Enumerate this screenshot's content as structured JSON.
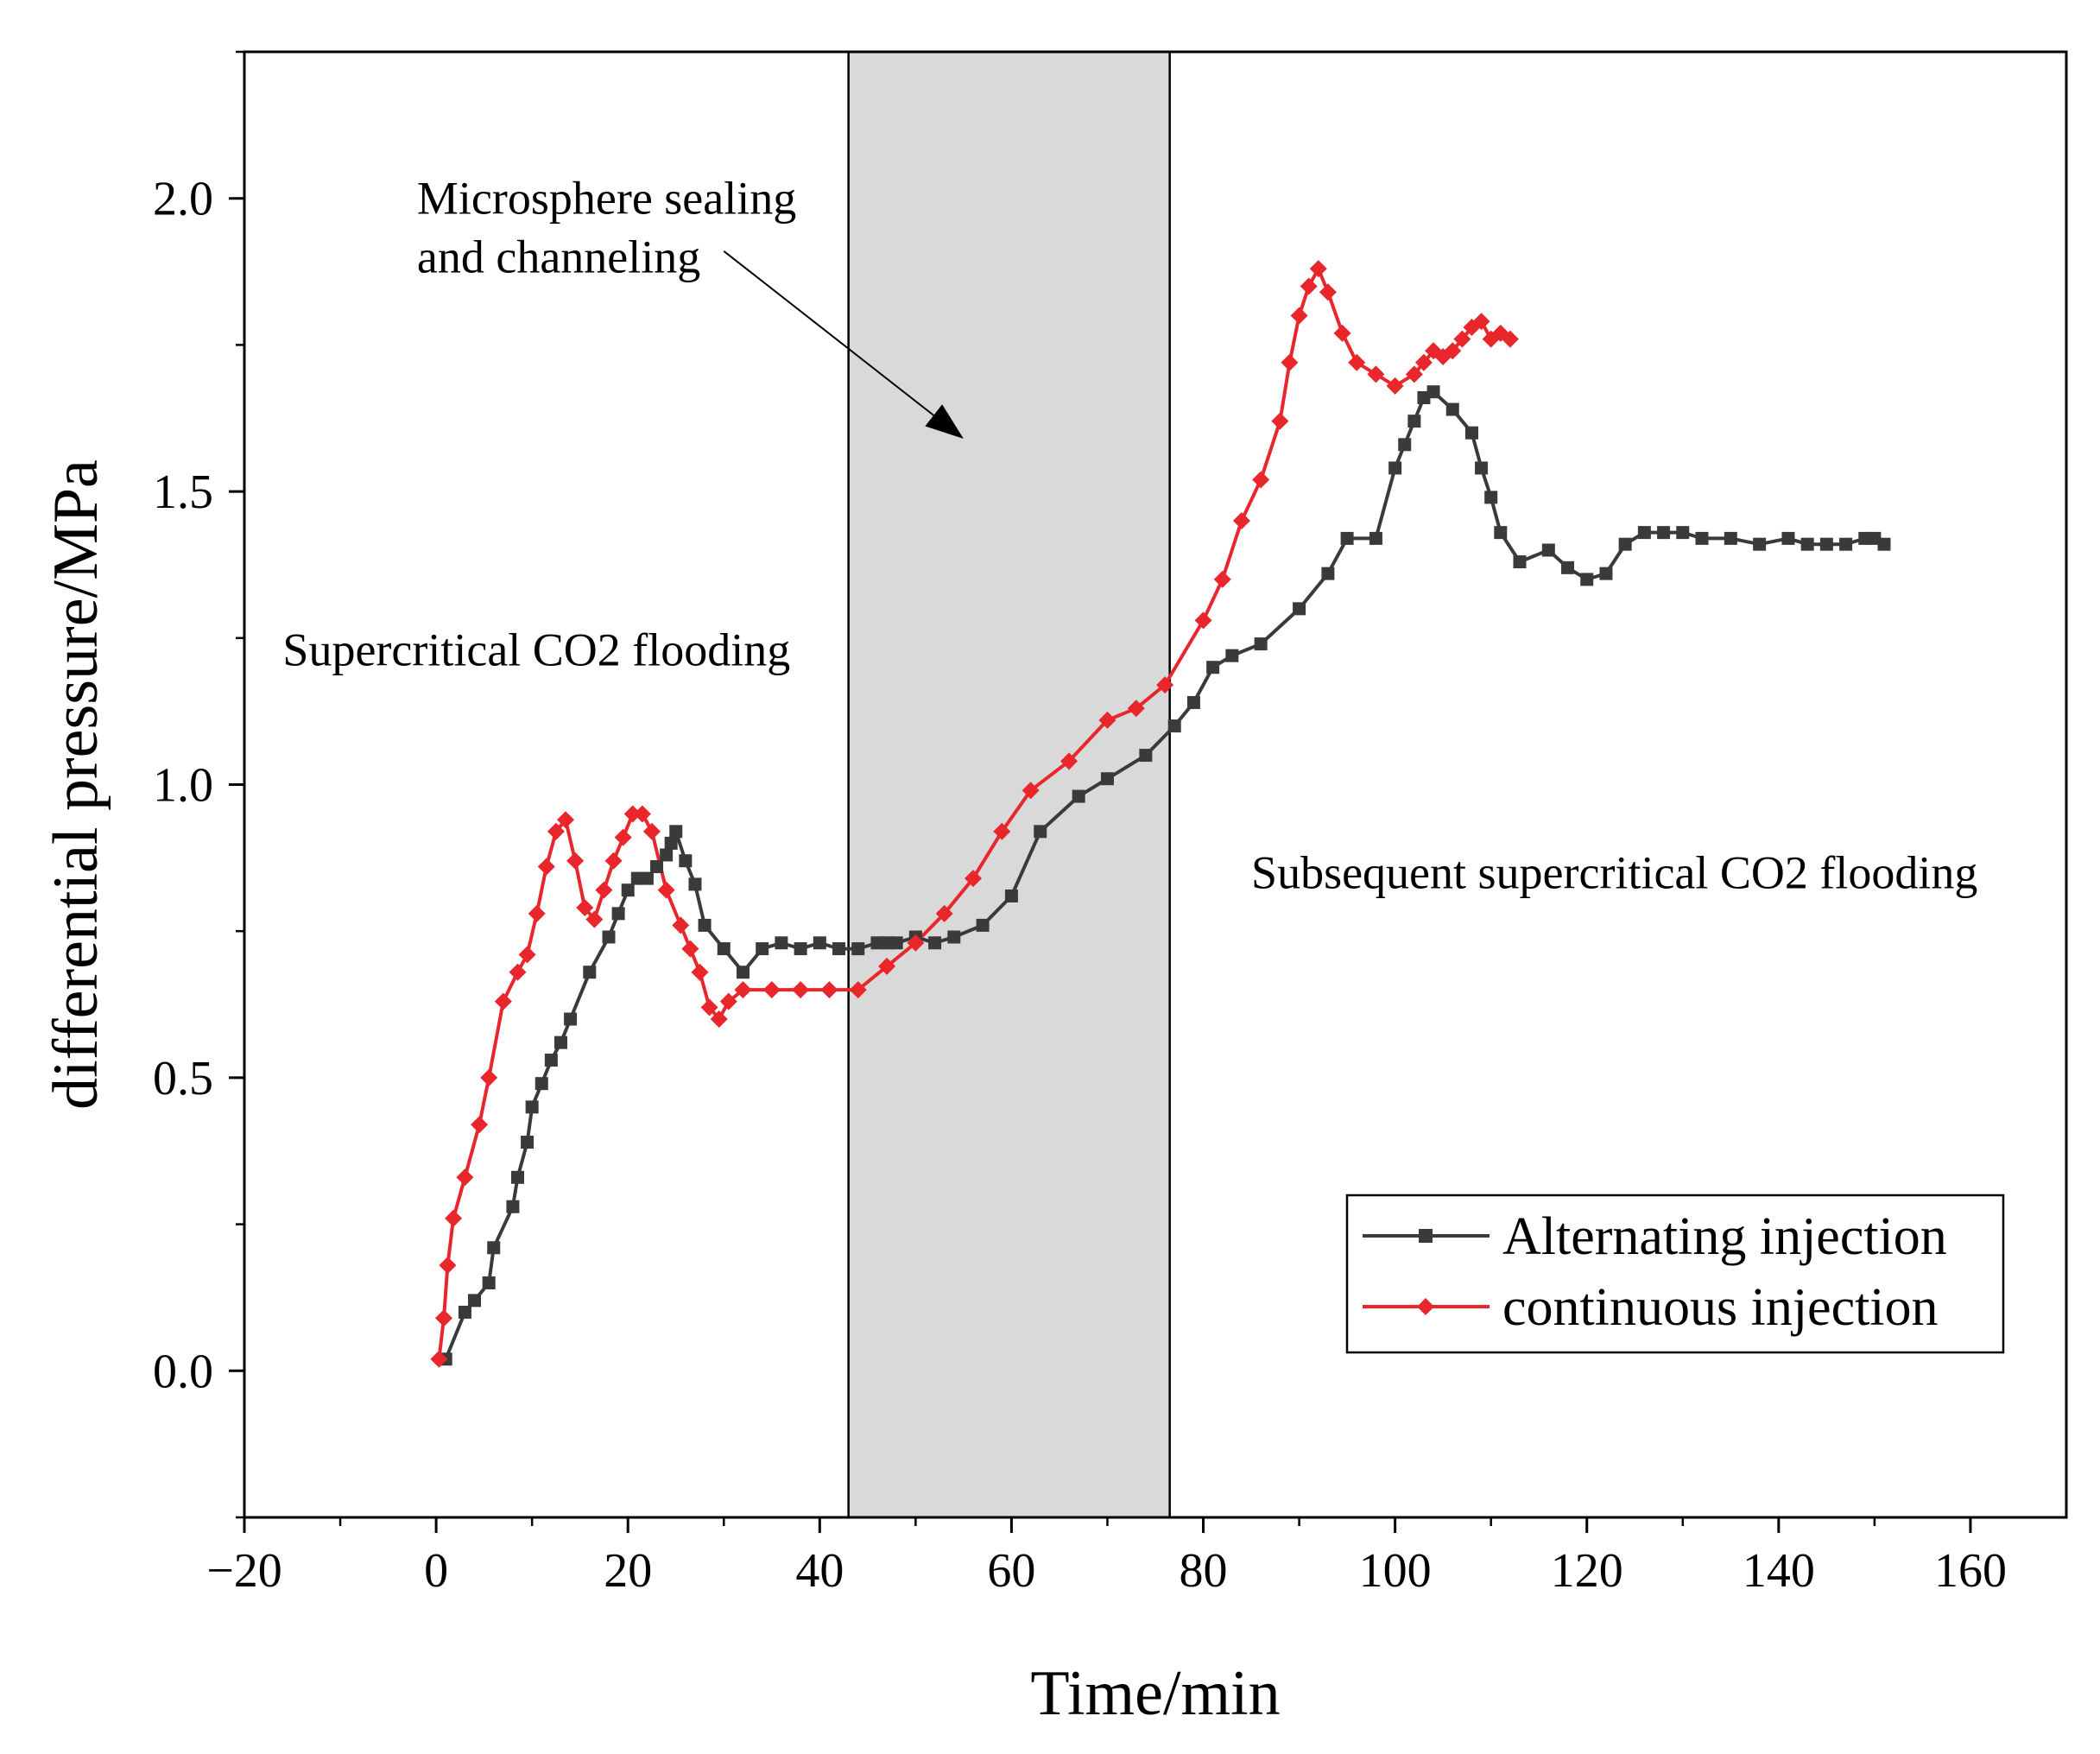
{
  "chart_data": {
    "type": "line",
    "title": "",
    "xlabel": "Time/min",
    "ylabel": "differential pressure/MPa",
    "xlim": [
      -20,
      170
    ],
    "ylim": [
      -0.25,
      2.25
    ],
    "x_ticks": [
      -20,
      0,
      20,
      40,
      60,
      80,
      100,
      120,
      140,
      160
    ],
    "x_tick_labels": [
      "−20",
      "0",
      "20",
      "40",
      "60",
      "80",
      "100",
      "120",
      "140",
      "160"
    ],
    "y_ticks": [
      0.0,
      0.5,
      1.0,
      1.5,
      2.0
    ],
    "y_tick_labels": [
      "0.0",
      "0.5",
      "1.0",
      "1.5",
      "2.0"
    ],
    "shaded_region": {
      "x_start": 43,
      "x_end": 76.5,
      "color": "#d9d9d9"
    },
    "annotations": [
      {
        "text": "Microsphere sealing",
        "x": -2,
        "y": 2.0
      },
      {
        "text": "and channeling",
        "x": -2,
        "y": 1.9
      },
      {
        "text": "Supercritical CO2 flooding",
        "x": -16,
        "y": 1.23
      },
      {
        "text": "Subsequent supercritical CO2 flooding",
        "x": 85,
        "y": 0.85
      }
    ],
    "arrow": {
      "from": [
        30,
        1.91
      ],
      "to": [
        55,
        1.59
      ]
    },
    "legend_position": "bottom-right",
    "series": [
      {
        "name": "Alternating injection",
        "color": "#3a3a3a",
        "marker": "square",
        "x": [
          1,
          3,
          4,
          5.5,
          6,
          8,
          8.5,
          9.5,
          10,
          11,
          12,
          13,
          14,
          16,
          18,
          19,
          20,
          21,
          22,
          23,
          24,
          24.5,
          25,
          26,
          27,
          28,
          30,
          32,
          34,
          36,
          38,
          40,
          42,
          44,
          46,
          47,
          48,
          50,
          52,
          54,
          57,
          60,
          63,
          67,
          70,
          74,
          77,
          79,
          81,
          83,
          86,
          90,
          93,
          95,
          98,
          100,
          101,
          102,
          103,
          104,
          106,
          108,
          109,
          110,
          111,
          113,
          116,
          118,
          120,
          122,
          124,
          126,
          128,
          130,
          132,
          135,
          138,
          141,
          143,
          145,
          147,
          149,
          150,
          151
        ],
        "values": [
          0.02,
          0.1,
          0.12,
          0.15,
          0.21,
          0.28,
          0.33,
          0.39,
          0.45,
          0.49,
          0.53,
          0.56,
          0.6,
          0.68,
          0.74,
          0.78,
          0.82,
          0.84,
          0.84,
          0.86,
          0.88,
          0.9,
          0.92,
          0.87,
          0.83,
          0.76,
          0.72,
          0.68,
          0.72,
          0.73,
          0.72,
          0.73,
          0.72,
          0.72,
          0.73,
          0.73,
          0.73,
          0.74,
          0.73,
          0.74,
          0.76,
          0.81,
          0.92,
          0.98,
          1.01,
          1.05,
          1.1,
          1.14,
          1.2,
          1.22,
          1.24,
          1.3,
          1.36,
          1.42,
          1.42,
          1.54,
          1.58,
          1.62,
          1.66,
          1.67,
          1.64,
          1.6,
          1.54,
          1.49,
          1.43,
          1.38,
          1.4,
          1.37,
          1.35,
          1.36,
          1.41,
          1.43,
          1.43,
          1.43,
          1.42,
          1.42,
          1.41,
          1.42,
          1.41,
          1.41,
          1.41,
          1.42,
          1.42,
          1.41
        ]
      },
      {
        "name": "continuous injection",
        "color": "#e8262b",
        "marker": "diamond",
        "x": [
          0.3,
          0.8,
          1.2,
          1.8,
          3,
          4.5,
          5.5,
          7,
          8.5,
          9.5,
          10.5,
          11.5,
          12.5,
          13.5,
          14.5,
          15.5,
          16.5,
          17.5,
          18.5,
          19.5,
          20.5,
          21.5,
          22.5,
          24,
          25.5,
          26.5,
          27.5,
          28.5,
          29.5,
          30.5,
          32,
          35,
          38,
          41,
          44,
          47,
          50,
          53,
          56,
          59,
          62,
          66,
          70,
          73,
          76,
          80,
          82,
          84,
          86,
          88,
          89,
          90,
          91,
          92,
          93,
          94.5,
          96,
          98,
          100,
          102,
          103,
          104,
          105,
          106,
          107,
          108,
          109,
          110,
          111,
          112
        ],
        "values": [
          0.02,
          0.09,
          0.18,
          0.26,
          0.33,
          0.42,
          0.5,
          0.63,
          0.68,
          0.71,
          0.78,
          0.86,
          0.92,
          0.94,
          0.87,
          0.79,
          0.77,
          0.82,
          0.87,
          0.91,
          0.95,
          0.95,
          0.92,
          0.82,
          0.76,
          0.72,
          0.68,
          0.62,
          0.6,
          0.63,
          0.65,
          0.65,
          0.65,
          0.65,
          0.65,
          0.69,
          0.73,
          0.78,
          0.84,
          0.92,
          0.99,
          1.04,
          1.11,
          1.13,
          1.17,
          1.28,
          1.35,
          1.45,
          1.52,
          1.62,
          1.72,
          1.8,
          1.85,
          1.88,
          1.84,
          1.77,
          1.72,
          1.7,
          1.68,
          1.7,
          1.72,
          1.74,
          1.73,
          1.74,
          1.76,
          1.78,
          1.79,
          1.76,
          1.77,
          1.76
        ]
      }
    ]
  }
}
